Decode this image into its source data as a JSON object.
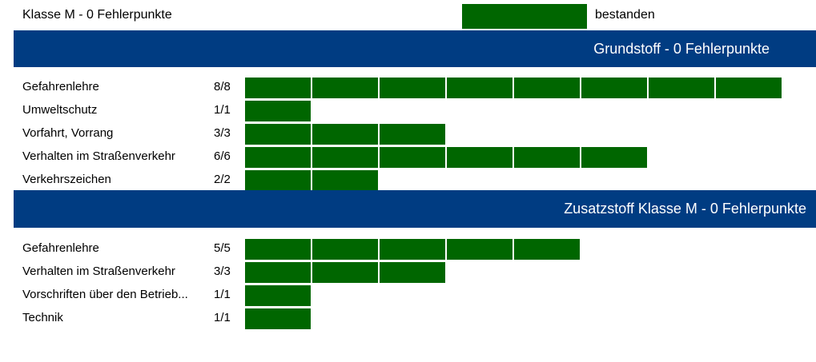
{
  "result": {
    "title": "Klasse M - 0 Fehlerpunkte",
    "status": "bestanden",
    "status_color": "#006600"
  },
  "colors": {
    "header_bg": "#003c82",
    "bar": "#006600"
  },
  "sections": [
    {
      "title": "Grundstoff - 0 Fehlerpunkte",
      "rows": [
        {
          "label": "Gefahrenlehre",
          "score": "8/8",
          "correct": 8,
          "total": 8
        },
        {
          "label": "Umweltschutz",
          "score": "1/1",
          "correct": 1,
          "total": 1
        },
        {
          "label": "Vorfahrt, Vorrang",
          "score": "3/3",
          "correct": 3,
          "total": 3
        },
        {
          "label": "Verhalten im Straßenverkehr",
          "score": "6/6",
          "correct": 6,
          "total": 6
        },
        {
          "label": "Verkehrszeichen",
          "score": "2/2",
          "correct": 2,
          "total": 2
        }
      ]
    },
    {
      "title": "Zusatzstoff Klasse M - 0 Fehlerpunkte",
      "rows": [
        {
          "label": "Gefahrenlehre",
          "score": "5/5",
          "correct": 5,
          "total": 5
        },
        {
          "label": "Verhalten im Straßenverkehr",
          "score": "3/3",
          "correct": 3,
          "total": 3
        },
        {
          "label": "Vorschriften über den Betrieb...",
          "score": "1/1",
          "correct": 1,
          "total": 1
        },
        {
          "label": "Technik",
          "score": "1/1",
          "correct": 1,
          "total": 1
        }
      ]
    }
  ]
}
